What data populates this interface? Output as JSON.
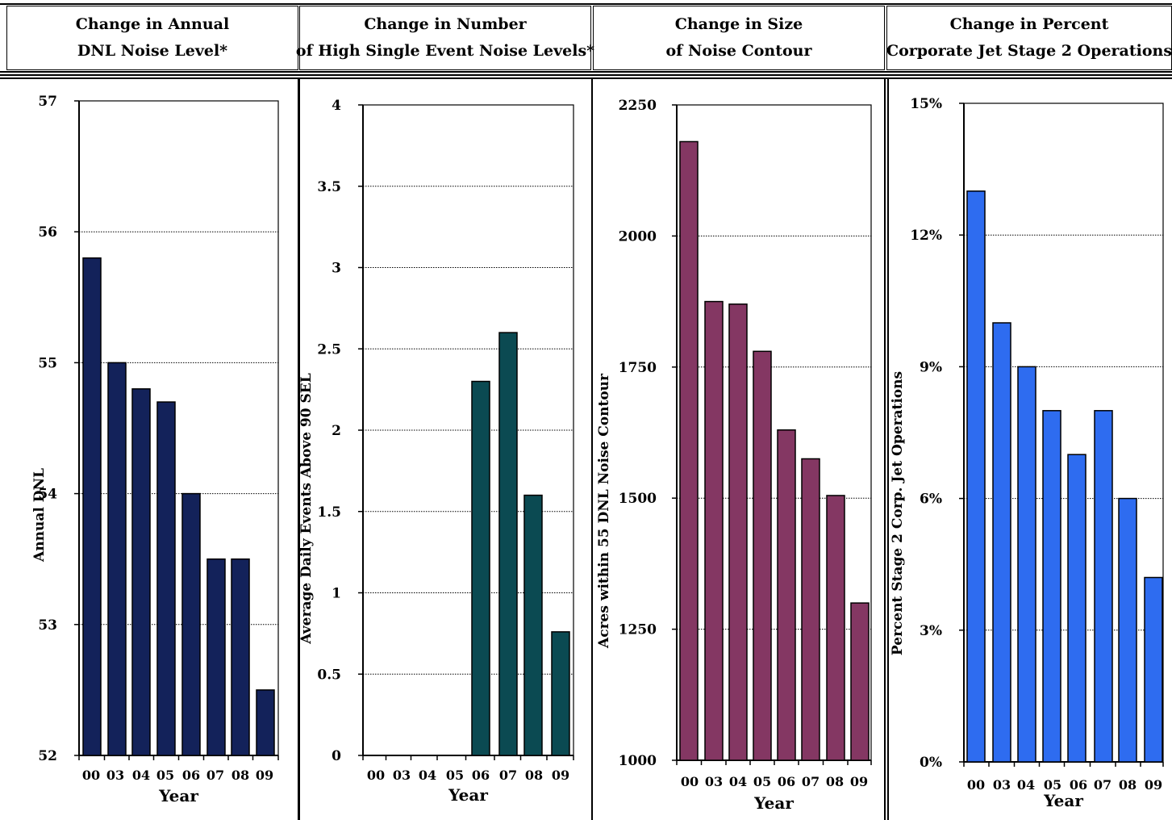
{
  "headers": [
    {
      "line1": "Change in Annual",
      "line2": "DNL Noise Level*"
    },
    {
      "line1": "Change in Number",
      "line2": "of High Single Event Noise Levels*"
    },
    {
      "line1": "Change in Size",
      "line2": "of Noise Contour"
    },
    {
      "line1": "Change in Percent",
      "line2": "Corporate Jet Stage 2 Operations"
    }
  ],
  "colors": {
    "dnl": "#13225a",
    "events": "#0b4a52",
    "contour": "#843763",
    "stage2": "#2e6cf0"
  },
  "chart_data": [
    {
      "type": "bar",
      "categories": [
        "00",
        "03",
        "04",
        "05",
        "06",
        "07",
        "08",
        "09"
      ],
      "values": [
        55.8,
        55.0,
        54.8,
        54.7,
        54.0,
        53.5,
        53.5,
        52.5
      ],
      "xlabel": "Year",
      "ylabel": "Annual DNL",
      "ylim": [
        52,
        57
      ],
      "yticks": [
        52,
        53,
        54,
        55,
        56,
        57
      ],
      "ytick_labels": [
        "52",
        "53",
        "54",
        "55",
        "56",
        "57"
      ],
      "grid": true,
      "color": "#13225a"
    },
    {
      "type": "bar",
      "categories": [
        "00",
        "03",
        "04",
        "05",
        "06",
        "07",
        "08",
        "09"
      ],
      "values": [
        0,
        0,
        0,
        0,
        2.3,
        2.6,
        1.6,
        0.76
      ],
      "xlabel": "Year",
      "ylabel": "Average Daily Events Above 90 SEL",
      "ylim": [
        0,
        4
      ],
      "yticks": [
        0,
        0.5,
        1,
        1.5,
        2,
        2.5,
        3,
        3.5,
        4
      ],
      "ytick_labels": [
        "0",
        "0.5",
        "1",
        "1.5",
        "2",
        "2.5",
        "3",
        "3.5",
        "4"
      ],
      "grid": true,
      "color": "#0b4a52"
    },
    {
      "type": "bar",
      "categories": [
        "00",
        "03",
        "04",
        "05",
        "06",
        "07",
        "08",
        "09"
      ],
      "values": [
        2180,
        1875,
        1870,
        1780,
        1630,
        1575,
        1505,
        1300
      ],
      "xlabel": "Year",
      "ylabel": "Acres within 55 DNL Noise Contour",
      "ylim": [
        1000,
        2250
      ],
      "yticks": [
        1000,
        1250,
        1500,
        1750,
        2000,
        2250
      ],
      "ytick_labels": [
        "1000",
        "1250",
        "1500",
        "1750",
        "2000",
        "2250"
      ],
      "grid": true,
      "color": "#843763"
    },
    {
      "type": "bar",
      "categories": [
        "00",
        "03",
        "04",
        "05",
        "06",
        "07",
        "08",
        "09"
      ],
      "values": [
        13,
        10,
        9,
        8,
        7,
        8,
        6,
        4.2
      ],
      "xlabel": "Year",
      "ylabel": "Percent Stage 2 Corp. Jet Operations",
      "ylim": [
        0,
        15
      ],
      "yticks": [
        0,
        3,
        6,
        9,
        12,
        15
      ],
      "ytick_labels": [
        "0%",
        "3%",
        "6%",
        "9%",
        "12%",
        "15%"
      ],
      "grid": true,
      "color": "#2e6cf0"
    }
  ]
}
